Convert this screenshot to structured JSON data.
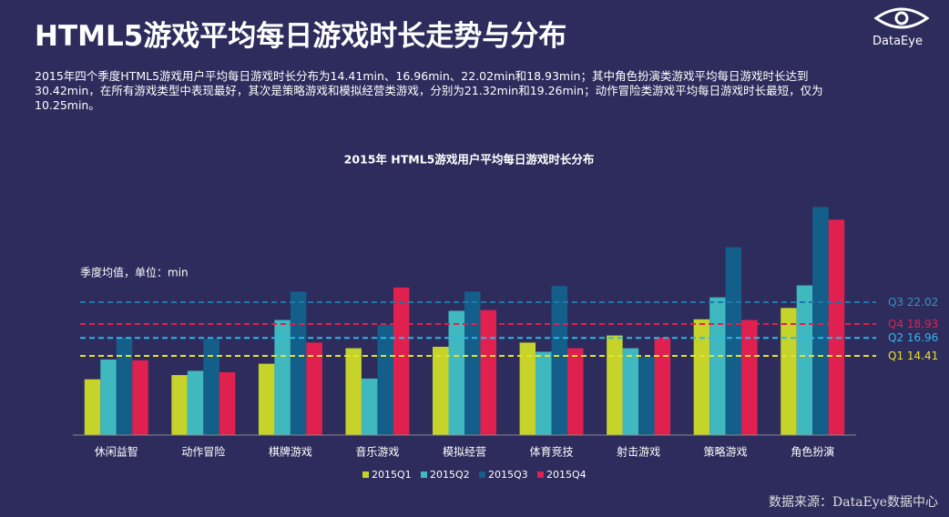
{
  "header": {
    "title": "HTML5游戏平均每日游戏时长走势与分布",
    "logo": "DataEye",
    "description": "2015年四个季度HTML5游戏用户平均每日游戏时长分布为14.41min、16.96min、22.02min和18.93min；其中角色扮演类游戏平均每日游戏时长达到30.42min，在所有游戏类型中表现最好，其次是策略游戏和模拟经营类游戏，分别为21.32min和19.26min；动作冒险类游戏平均每日游戏时长最短，仅为10.25min。"
  },
  "chart_data": {
    "type": "bar",
    "title": "2015年 HTML5游戏用户平均每日游戏时长分布",
    "note": "季度均值，单位：min",
    "categories": [
      "休闲益智",
      "动作冒险",
      "棋牌游戏",
      "音乐游戏",
      "模拟经营",
      "体育竞技",
      "射击游戏",
      "策略游戏",
      "角色扮演"
    ],
    "series": [
      {
        "name": "2015Q1",
        "color": "#c5d32a",
        "values": [
          11.1,
          11.7,
          13.3,
          15.5,
          15.7,
          16.3,
          17.3,
          19.6,
          21.2
        ]
      },
      {
        "name": "2015Q2",
        "color": "#3fb8c0",
        "values": [
          13.9,
          12.3,
          19.5,
          11.2,
          20.8,
          15.0,
          15.5,
          22.7,
          24.4
        ]
      },
      {
        "name": "2015Q3",
        "color": "#135f8a",
        "values": [
          17.0,
          16.8,
          23.5,
          18.8,
          23.5,
          24.3,
          14.3,
          29.8,
          35.5
        ]
      },
      {
        "name": "2015Q4",
        "color": "#e0204f",
        "values": [
          13.8,
          12.1,
          16.3,
          24.1,
          20.9,
          15.5,
          17.0,
          19.5,
          33.7
        ]
      }
    ],
    "reference_lines": [
      {
        "name": "Q3",
        "value": 22.02,
        "color": "#1f78a8",
        "label_color": "#3a8fc0"
      },
      {
        "name": "Q4",
        "value": 18.93,
        "color": "#e0204f",
        "label_color": "#e0204f"
      },
      {
        "name": "Q2",
        "value": 16.96,
        "color": "#2fb8e8",
        "label_color": "#2fb8e8"
      },
      {
        "name": "Q1",
        "value": 14.41,
        "color": "#e8e02a",
        "label_color": "#e8e02a"
      }
    ],
    "ylim": [
      3.2,
      38
    ],
    "source": "数据来源：DataEye数据中心"
  }
}
